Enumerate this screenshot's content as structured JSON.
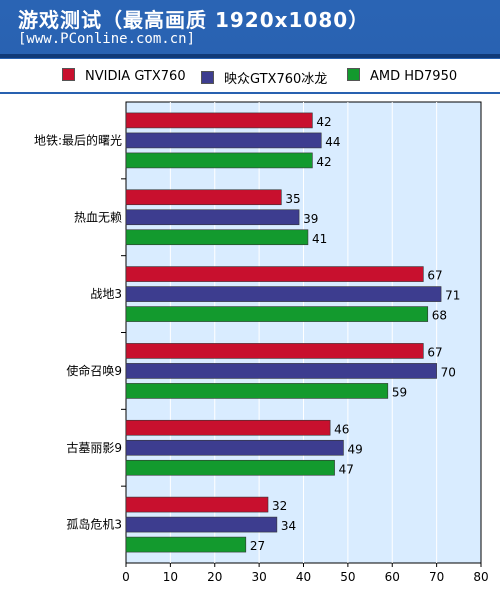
{
  "header": {
    "title": "游戏测试（最高画质 1920x1080）",
    "url": "[www.PConline.com.cn]"
  },
  "colors": {
    "nvidia": "#c8102e",
    "yingzhong": "#3d3d8f",
    "amd": "#139a2e",
    "plot_bg": "#d9ecff",
    "header_bg": "#2a64b4"
  },
  "chart_data": {
    "type": "bar",
    "orientation": "horizontal",
    "title": "游戏测试（最高画质 1920x1080）",
    "categories": [
      "地铁:最后的曙光",
      "热血无赖",
      "战地3",
      "使命召唤9",
      "古墓丽影9",
      "孤岛危机3"
    ],
    "series": [
      {
        "name": "NVIDIA GTX760",
        "values": [
          42,
          35,
          67,
          67,
          46,
          32
        ]
      },
      {
        "name": "映众GTX760冰龙",
        "values": [
          44,
          39,
          71,
          70,
          49,
          34
        ]
      },
      {
        "name": "AMD HD7950",
        "values": [
          42,
          41,
          68,
          59,
          47,
          27
        ]
      }
    ],
    "xlim": [
      0,
      80
    ],
    "xticks": [
      0,
      10,
      20,
      30,
      40,
      50,
      60,
      70,
      80
    ],
    "grid": true,
    "legend": "top"
  }
}
